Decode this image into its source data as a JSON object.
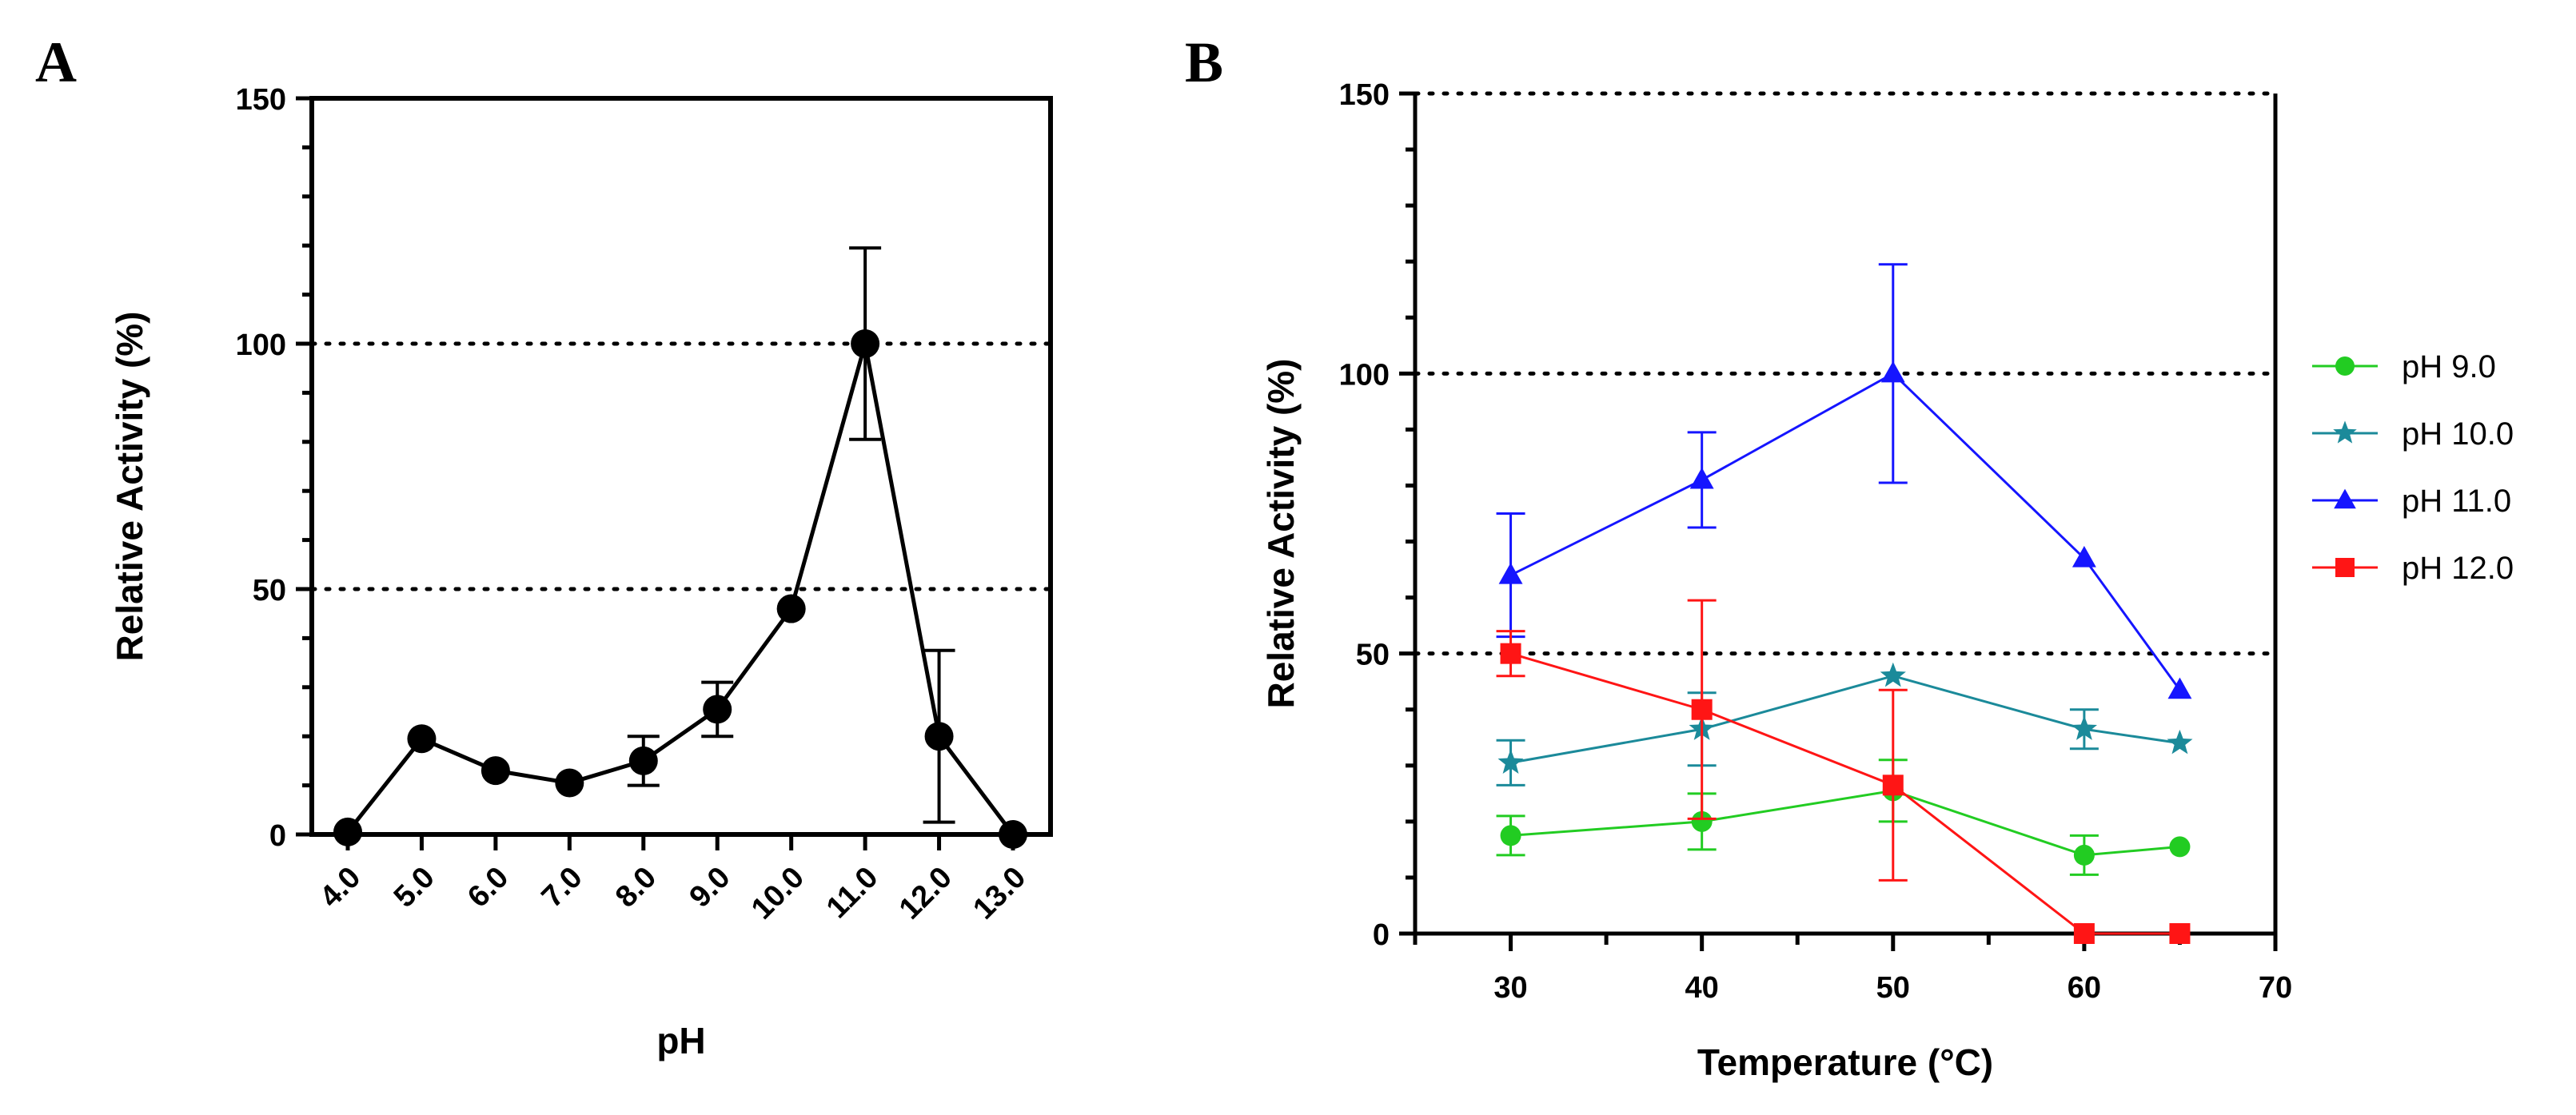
{
  "figure": {
    "panel_a_label": "A",
    "panel_b_label": "B"
  },
  "chart_data": [
    {
      "panel": "A",
      "type": "line",
      "xlabel": "pH",
      "ylabel": "Relative Activity (%)",
      "ylim": [
        0,
        150
      ],
      "yticks": [
        "0",
        "50",
        "100",
        "150"
      ],
      "categories": [
        "4.0",
        "5.0",
        "6.0",
        "7.0",
        "8.0",
        "9.0",
        "10.0",
        "11.0",
        "12.0",
        "13.0"
      ],
      "reference_lines": [
        50,
        100
      ],
      "series": [
        {
          "color": "#000000",
          "marker": "circle",
          "values": [
            0.5,
            19.5,
            13,
            10.5,
            15,
            25.5,
            46,
            100,
            20,
            0
          ],
          "errors": [
            0,
            0,
            0,
            0,
            5,
            5.5,
            0,
            19.5,
            17.5,
            0
          ]
        }
      ],
      "grid": false
    },
    {
      "panel": "B",
      "type": "line",
      "xlabel": "Temperature (°C)",
      "ylabel": "Relative Activity (%)",
      "xlim": [
        25,
        70
      ],
      "ylim": [
        0,
        150
      ],
      "xticks": [
        "30",
        "40",
        "50",
        "60",
        "70"
      ],
      "yticks": [
        "0",
        "50",
        "100",
        "150"
      ],
      "reference_lines": [
        50,
        100
      ],
      "legend_position": "right",
      "series": [
        {
          "name": "pH 9.0",
          "color": "#22cc22",
          "marker": "circle",
          "x": [
            30,
            40,
            50,
            60,
            65
          ],
          "values": [
            17.5,
            20,
            25.5,
            14,
            15.5
          ],
          "errors": [
            3.5,
            5,
            5.5,
            3.5,
            0
          ]
        },
        {
          "name": "pH 10.0",
          "color": "#1b8a9a",
          "marker": "star",
          "x": [
            30,
            40,
            50,
            60,
            65
          ],
          "values": [
            30.5,
            36.5,
            46,
            36.5,
            34
          ],
          "errors": [
            4,
            6.5,
            0,
            3.5,
            0
          ]
        },
        {
          "name": "pH 11.0",
          "color": "#1515ff",
          "marker": "triangle",
          "x": [
            30,
            40,
            50,
            60,
            65
          ],
          "values": [
            64,
            81,
            100,
            67,
            43.5
          ],
          "errors": [
            11,
            8.5,
            19.5,
            0,
            0
          ]
        },
        {
          "name": "pH 12.0",
          "color": "#ff1515",
          "marker": "square",
          "x": [
            30,
            40,
            50,
            60,
            65
          ],
          "values": [
            50,
            40,
            26.5,
            0,
            0
          ],
          "errors": [
            4,
            19.5,
            17,
            0,
            0
          ]
        }
      ],
      "grid": false
    }
  ]
}
